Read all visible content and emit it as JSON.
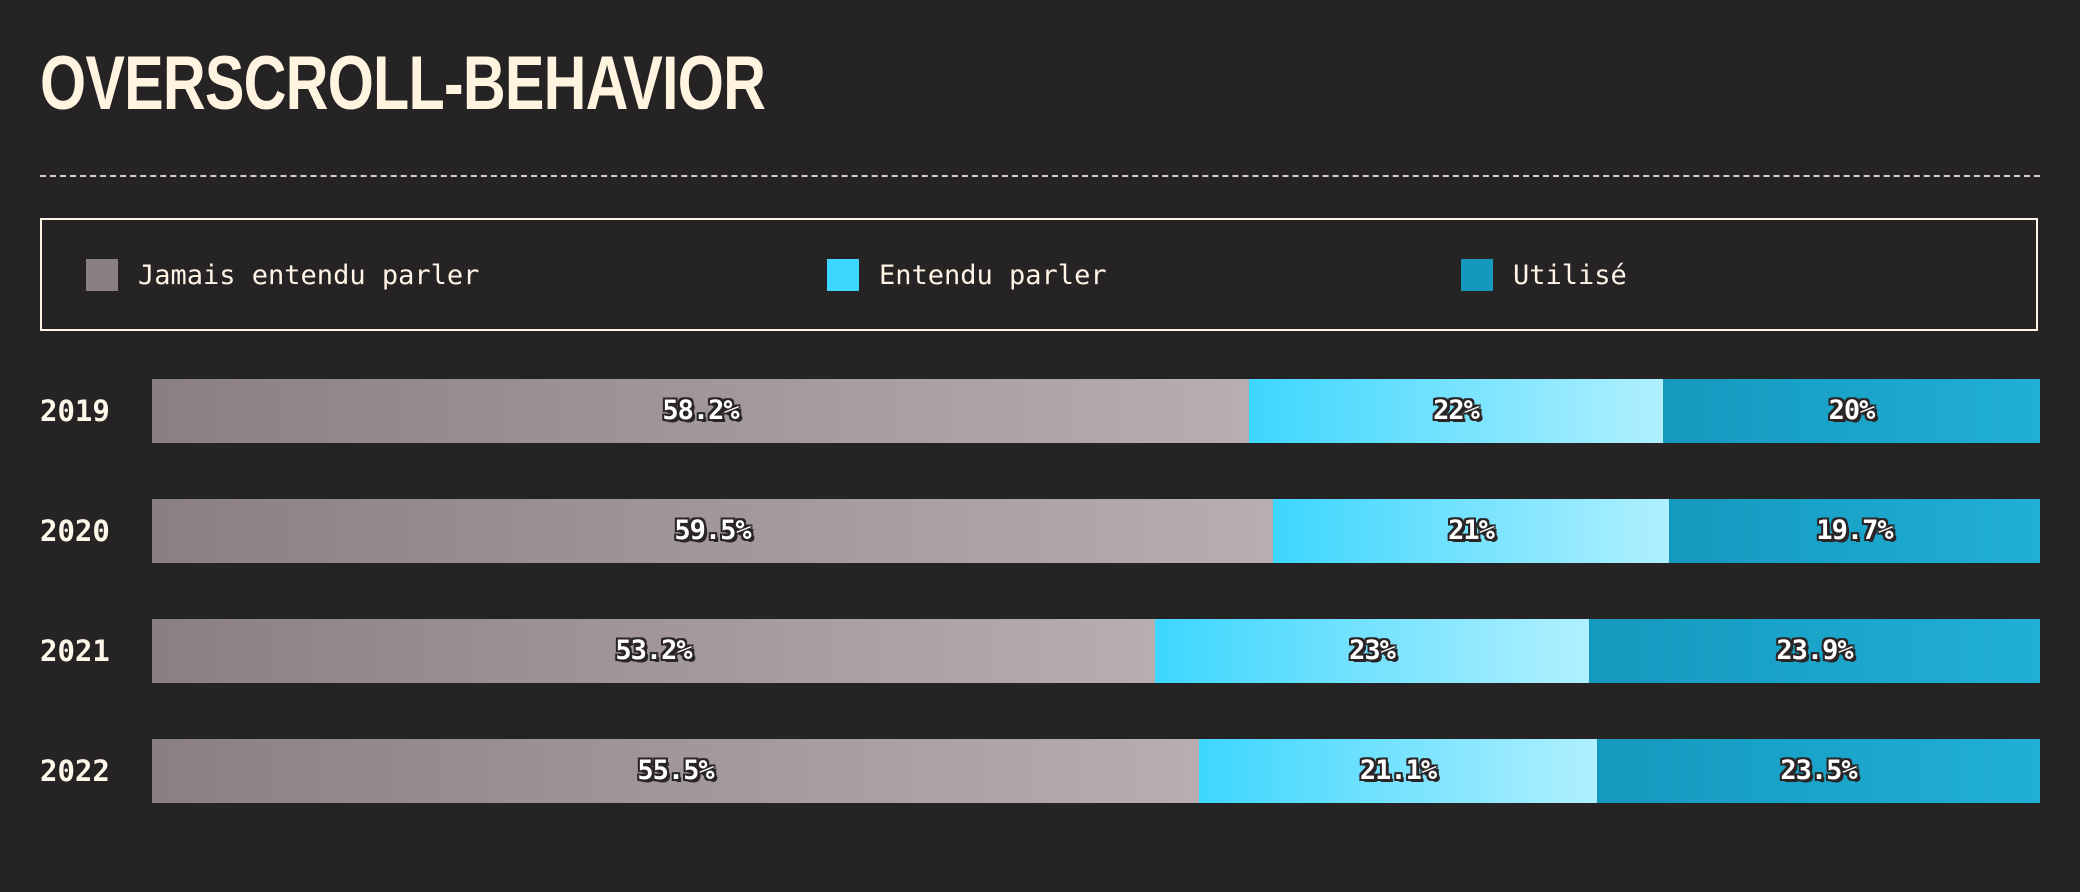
{
  "title": "OVERSCROLL-BEHAVIOR",
  "legend": {
    "items": [
      {
        "label": "Jamais entendu parler",
        "color": "#8a7f84"
      },
      {
        "label": "Entendu parler",
        "color": "#3dd6fe"
      },
      {
        "label": "Utilisé",
        "color": "#1499be"
      }
    ]
  },
  "chart_data": {
    "type": "bar",
    "orientation": "horizontal",
    "stacked": true,
    "normalized": true,
    "title": "OVERSCROLL-BEHAVIOR",
    "categories": [
      "2019",
      "2020",
      "2021",
      "2022"
    ],
    "series": [
      {
        "name": "Jamais entendu parler",
        "values": [
          58.2,
          59.5,
          53.2,
          55.5
        ],
        "labels": [
          "58.2%",
          "59.5%",
          "53.2%",
          "55.5%"
        ],
        "color": "#8a7f84",
        "color_end": "#b8aeb0"
      },
      {
        "name": "Entendu parler",
        "values": [
          22,
          21,
          23,
          21.1
        ],
        "labels": [
          "22%",
          "21%",
          "23%",
          "21.1%"
        ],
        "color": "#3dd6fe",
        "color_end": "#b0f0ff"
      },
      {
        "name": "Utilisé",
        "values": [
          20,
          19.7,
          23.9,
          23.5
        ],
        "labels": [
          "20%",
          "19.7%",
          "23.9%",
          "23.5%"
        ],
        "color": "#1499be",
        "color_end": "#21afd6"
      }
    ],
    "xlim": [
      0,
      100
    ],
    "legend_position": "top"
  }
}
